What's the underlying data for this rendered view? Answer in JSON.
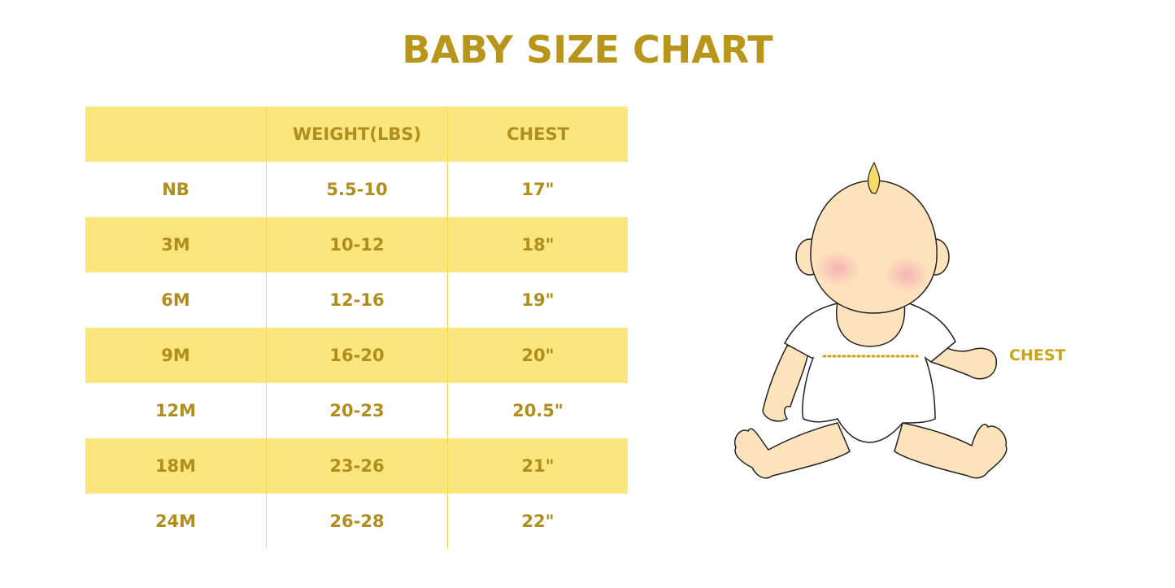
{
  "title": "BABY SIZE CHART",
  "table": {
    "headers": [
      "",
      "WEIGHT(LBS)",
      "CHEST"
    ],
    "rows": [
      [
        "NB",
        "5.5-10",
        "17\""
      ],
      [
        "3M",
        "10-12",
        "18\""
      ],
      [
        "6M",
        "12-16",
        "19\""
      ],
      [
        "9M",
        "16-20",
        "20\""
      ],
      [
        "12M",
        "20-23",
        "20.5\""
      ],
      [
        "18M",
        "23-26",
        "21\""
      ],
      [
        "24M",
        "26-28",
        "22\""
      ]
    ]
  },
  "illustration": {
    "chest_label": "CHEST"
  },
  "colors": {
    "text": "#B08E1E",
    "stripe": "#FBE57D",
    "divider": "#F7D84A",
    "skin": "#FCE3BC"
  }
}
